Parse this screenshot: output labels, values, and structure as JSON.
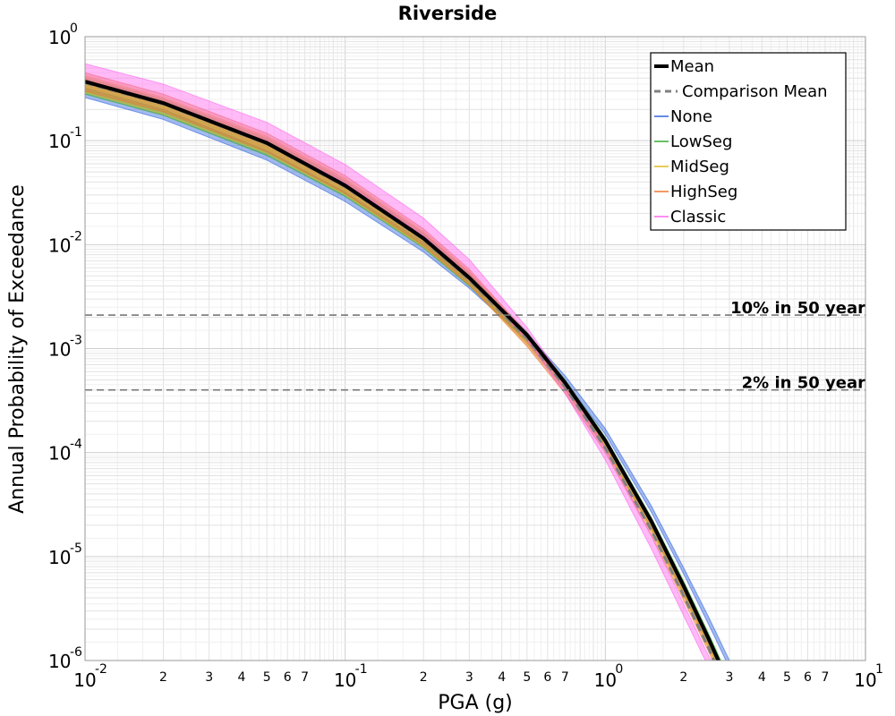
{
  "chart_data": {
    "type": "line",
    "title": "Riverside",
    "xlabel": "PGA (g)",
    "ylabel": "Annual Probability of Exceedance",
    "x_scale": "log",
    "y_scale": "log",
    "xlim": [
      0.01,
      10
    ],
    "ylim": [
      1e-06,
      1
    ],
    "grid": true,
    "legend_position": "top-right",
    "x_ticks": [
      {
        "label": "10",
        "exp": "-2"
      },
      {
        "label": "10",
        "exp": "-1"
      },
      {
        "label": "10",
        "exp": "0"
      },
      {
        "label": "10",
        "exp": "1"
      }
    ],
    "y_ticks": [
      {
        "label": "10",
        "exp": "0"
      },
      {
        "label": "10",
        "exp": "-1"
      },
      {
        "label": "10",
        "exp": "-2"
      },
      {
        "label": "10",
        "exp": "-3"
      },
      {
        "label": "10",
        "exp": "-4"
      },
      {
        "label": "10",
        "exp": "-5"
      },
      {
        "label": "10",
        "exp": "-6"
      }
    ],
    "x_minor_tick_labels": [
      "2",
      "3",
      "4",
      "5",
      "6",
      "7"
    ],
    "reference_lines": [
      {
        "label": "10% in 50 year",
        "y": 0.0021
      },
      {
        "label": "2% in 50 year",
        "y": 0.0004
      }
    ],
    "series": [
      {
        "name": "Mean",
        "color": "#000000",
        "style": "solid-thick",
        "x": [
          0.01,
          0.02,
          0.05,
          0.1,
          0.2,
          0.3,
          0.5,
          0.7,
          1.0,
          1.5,
          2.0,
          2.5,
          3.0
        ],
        "y": [
          0.37,
          0.23,
          0.095,
          0.037,
          0.0115,
          0.0048,
          0.00135,
          0.00047,
          0.00013,
          2.2e-05,
          5.2e-06,
          1.6e-06,
          5.8e-07
        ]
      },
      {
        "name": "Comparison Mean",
        "color": "#808080",
        "style": "dashed",
        "x": [
          0.01,
          0.02,
          0.05,
          0.1,
          0.2,
          0.3,
          0.5,
          0.7,
          1.0,
          1.5,
          2.0,
          2.5,
          3.0
        ],
        "y": [
          0.36,
          0.225,
          0.093,
          0.036,
          0.0112,
          0.0046,
          0.00125,
          0.00043,
          0.00011,
          1.8e-05,
          4.2e-06,
          1.3e-06,
          4.5e-07
        ]
      },
      {
        "name": "None",
        "color": "#3366dd",
        "style": "band",
        "x": [
          0.01,
          0.02,
          0.05,
          0.1,
          0.2,
          0.3,
          0.5,
          0.7,
          1.0,
          1.5,
          2.0,
          2.5,
          3.0,
          3.3
        ],
        "y_low": [
          0.26,
          0.16,
          0.065,
          0.026,
          0.0085,
          0.0038,
          0.0012,
          0.00048,
          0.00015,
          2.7e-05,
          6.8e-06,
          2.2e-06,
          8.5e-07,
          5e-07
        ],
        "y_high": [
          0.32,
          0.2,
          0.08,
          0.032,
          0.0105,
          0.0046,
          0.0014,
          0.00055,
          0.00017,
          3.1e-05,
          7.8e-06,
          2.6e-06,
          1e-06,
          6e-07
        ]
      },
      {
        "name": "LowSeg",
        "color": "#33aa33",
        "style": "band",
        "x": [
          0.01,
          0.02,
          0.05,
          0.1,
          0.2,
          0.3,
          0.5,
          0.7,
          1.0,
          1.5,
          2.0,
          2.5,
          3.0
        ],
        "y_low": [
          0.28,
          0.175,
          0.072,
          0.029,
          0.0093,
          0.004,
          0.00115,
          0.00041,
          0.00011,
          1.9e-05,
          4.4e-06,
          1.4e-06,
          5e-07
        ],
        "y_high": [
          0.4,
          0.25,
          0.105,
          0.041,
          0.0128,
          0.0053,
          0.00145,
          0.0005,
          0.00014,
          2.4e-05,
          5.8e-06,
          1.8e-06,
          6.6e-07
        ]
      },
      {
        "name": "MidSeg",
        "color": "#ddbb22",
        "style": "band",
        "x": [
          0.01,
          0.02,
          0.05,
          0.1,
          0.2,
          0.3,
          0.5,
          0.7,
          1.0,
          1.5,
          2.0,
          2.5,
          3.0
        ],
        "y_low": [
          0.29,
          0.18,
          0.075,
          0.03,
          0.0095,
          0.0041,
          0.0011,
          0.0004,
          0.00011,
          1.8e-05,
          4.2e-06,
          1.3e-06,
          4.8e-07
        ],
        "y_high": [
          0.42,
          0.26,
          0.11,
          0.043,
          0.0133,
          0.0055,
          0.0014,
          0.00049,
          0.000135,
          2.3e-05,
          5.5e-06,
          1.7e-06,
          6.2e-07
        ]
      },
      {
        "name": "HighSeg",
        "color": "#ee7733",
        "style": "band",
        "x": [
          0.01,
          0.02,
          0.05,
          0.1,
          0.2,
          0.3,
          0.5,
          0.7,
          1.0,
          1.5,
          2.0,
          2.5,
          3.0
        ],
        "y_low": [
          0.3,
          0.19,
          0.078,
          0.031,
          0.0098,
          0.0041,
          0.00105,
          0.00037,
          0.0001,
          1.6e-05,
          3.8e-06,
          1.2e-06,
          4.3e-07
        ],
        "y_high": [
          0.45,
          0.28,
          0.118,
          0.046,
          0.0142,
          0.0058,
          0.0014,
          0.00047,
          0.00013,
          2.1e-05,
          5e-06,
          1.6e-06,
          5.7e-07
        ]
      },
      {
        "name": "Classic",
        "color": "#ff66ee",
        "style": "band",
        "x": [
          0.01,
          0.02,
          0.05,
          0.1,
          0.2,
          0.3,
          0.5,
          0.7,
          1.0,
          1.5,
          2.0,
          2.5,
          2.7
        ],
        "y_low": [
          0.36,
          0.23,
          0.097,
          0.039,
          0.0122,
          0.0049,
          0.0012,
          0.00037,
          8.5e-05,
          1.2e-05,
          2.7e-06,
          8.5e-07,
          6e-07
        ],
        "y_high": [
          0.55,
          0.35,
          0.15,
          0.059,
          0.018,
          0.0072,
          0.0016,
          0.00048,
          0.00011,
          1.6e-05,
          3.5e-06,
          1.1e-06,
          7.8e-07
        ]
      }
    ]
  }
}
